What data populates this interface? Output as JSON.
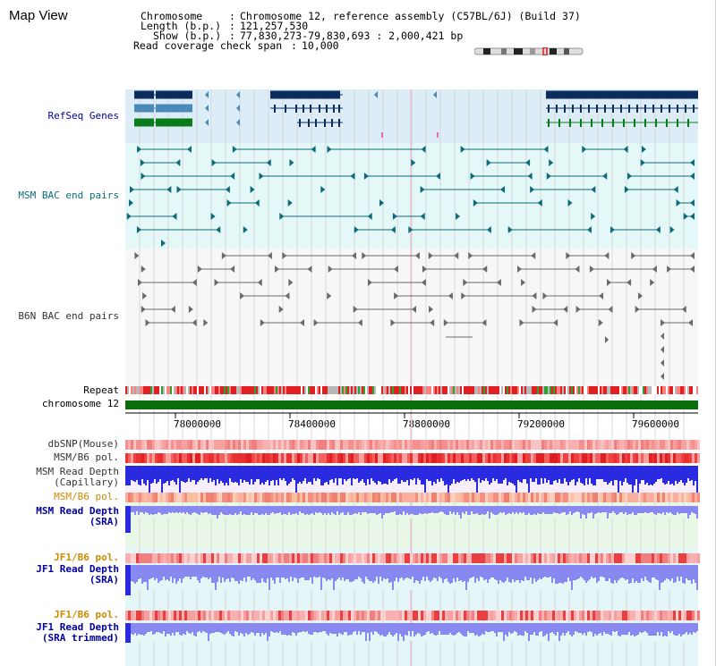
{
  "title": "Map View",
  "header": {
    "chromosome_key": "Chromosome",
    "chromosome_value": "Chromosome 12, reference assembly (C57BL/6J) (Build 37)",
    "length_key": "Length (b.p.)",
    "length_value": "121,257,530",
    "show_key": "Show (b.p.)",
    "show_value": "77,830,273-79,830,693 : 2,000,421 bp",
    "coverage_key": "Read coverage check span",
    "coverage_value": "10,000"
  },
  "tracks": {
    "refseq": "RefSeq Genes",
    "msm_bac": "MSM BAC end pairs",
    "b6n_bac": "B6N BAC end pairs",
    "repeat": "Repeat",
    "chromosome": "chromosome 12",
    "dbsnp": "dbSNP(Mouse)",
    "msm_b6_pol_1": "MSM/B6 pol.",
    "msm_read_depth_cap_1": "MSM Read Depth",
    "msm_read_depth_cap_2": "(Capillary)",
    "msm_b6_pol_2": "MSM/B6 pol.",
    "msm_read_depth_sra_1": "MSM Read Depth",
    "msm_read_depth_sra_2": "(SRA)",
    "jf1_b6_pol_1": "JF1/B6 pol.",
    "jf1_read_depth_sra_1": "JF1 Read Depth",
    "jf1_read_depth_sra_2": "(SRA)",
    "jf1_b6_pol_2": "JF1/B6 pol.",
    "jf1_read_depth_trim_1": "JF1 Read Depth",
    "jf1_read_depth_trim_2": "(SRA trimmed)"
  },
  "axis": {
    "ticks": [
      "78000000",
      "78400000",
      "78800000",
      "79200000",
      "79600000"
    ]
  },
  "colors": {
    "refseq_navy": "#0b2d5e",
    "refseq_steel": "#4a8ab8",
    "refseq_green": "#0a7a1a",
    "msm_teal": "#0e6a7a",
    "b6n_gray": "#6a6a6a",
    "depth_blue": "#2a2ae0",
    "depth_light": "#8888f0",
    "pol_red": "#e83030",
    "chrom_green": "#0a6e0a",
    "label_blue": "#0000a0",
    "label_teal": "#0e6a7a",
    "label_orange": "#d08800"
  }
}
